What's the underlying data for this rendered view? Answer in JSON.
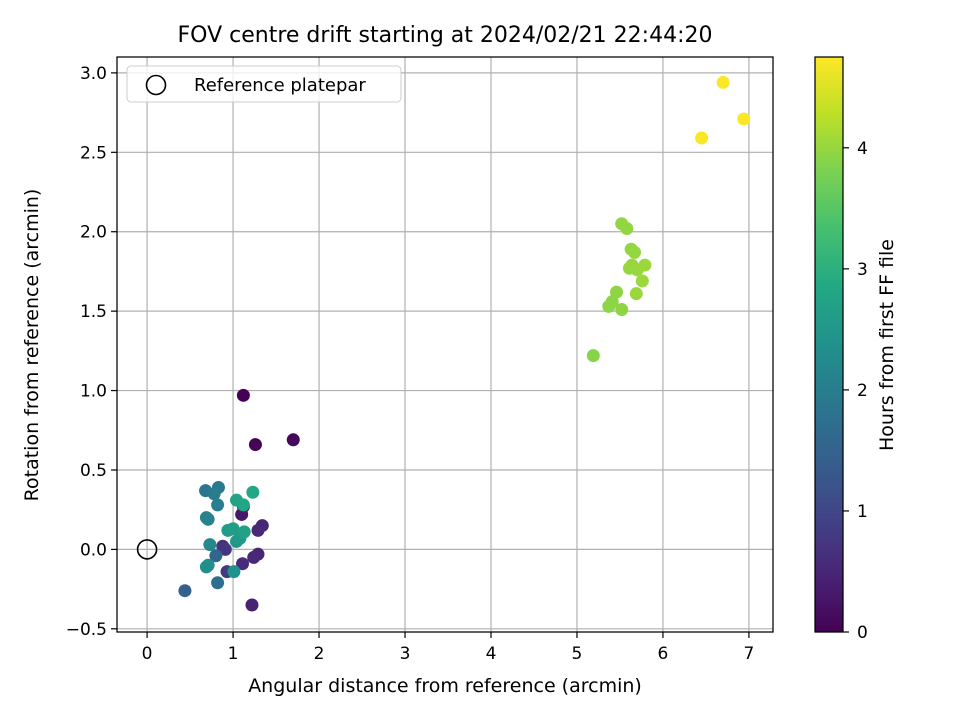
{
  "chart_data": {
    "type": "scatter",
    "title": "FOV centre drift starting at 2024/02/21 22:44:20",
    "xlabel": "Angular distance from reference (arcmin)",
    "ylabel": "Rotation from reference (arcmin)",
    "xlim": [
      -0.35,
      7.28
    ],
    "ylim": [
      -0.52,
      3.1
    ],
    "x_ticks": [
      0,
      1,
      2,
      3,
      4,
      5,
      6,
      7
    ],
    "x_tick_labels": [
      "0",
      "1",
      "2",
      "3",
      "4",
      "5",
      "6",
      "7"
    ],
    "y_ticks": [
      -0.5,
      0.0,
      0.5,
      1.0,
      1.5,
      2.0,
      2.5,
      3.0
    ],
    "y_tick_labels": [
      "−0.5",
      "0.0",
      "0.5",
      "1.0",
      "1.5",
      "2.0",
      "2.5",
      "3.0"
    ],
    "grid": true,
    "legend": {
      "placement": "upper-left",
      "entries": [
        {
          "label": "Reference platepar",
          "marker": "open-circle"
        }
      ]
    },
    "reference_point": {
      "x": 0.0,
      "y": 0.0
    },
    "colorbar": {
      "label": "Hours from first FF file",
      "colormap": "viridis",
      "range": [
        0,
        4.75
      ],
      "ticks": [
        0,
        1,
        2,
        3,
        4
      ],
      "tick_labels": [
        "0",
        "1",
        "2",
        "3",
        "4"
      ]
    },
    "points": [
      {
        "x": 1.12,
        "y": 0.97,
        "c": 0.02
      },
      {
        "x": 1.26,
        "y": 0.66,
        "c": 0.05
      },
      {
        "x": 1.7,
        "y": 0.69,
        "c": 0.1
      },
      {
        "x": 1.1,
        "y": 0.22,
        "c": 0.3
      },
      {
        "x": 1.12,
        "y": 0.27,
        "c": 0.35
      },
      {
        "x": 1.34,
        "y": 0.15,
        "c": 0.5
      },
      {
        "x": 1.29,
        "y": 0.12,
        "c": 0.55
      },
      {
        "x": 1.29,
        "y": -0.03,
        "c": 0.5
      },
      {
        "x": 1.24,
        "y": -0.05,
        "c": 0.55
      },
      {
        "x": 1.11,
        "y": -0.09,
        "c": 0.6
      },
      {
        "x": 1.22,
        "y": -0.35,
        "c": 0.45
      },
      {
        "x": 0.88,
        "y": 0.02,
        "c": 0.7
      },
      {
        "x": 0.91,
        "y": 0.0,
        "c": 0.75
      },
      {
        "x": 0.93,
        "y": -0.14,
        "c": 0.8
      },
      {
        "x": 0.44,
        "y": -0.26,
        "c": 1.45
      },
      {
        "x": 0.8,
        "y": -0.04,
        "c": 1.55
      },
      {
        "x": 0.82,
        "y": -0.21,
        "c": 1.75
      },
      {
        "x": 0.68,
        "y": 0.37,
        "c": 1.85
      },
      {
        "x": 0.83,
        "y": 0.39,
        "c": 1.9
      },
      {
        "x": 0.78,
        "y": 0.35,
        "c": 1.95
      },
      {
        "x": 0.82,
        "y": 0.28,
        "c": 2.0
      },
      {
        "x": 0.69,
        "y": 0.2,
        "c": 2.05
      },
      {
        "x": 0.71,
        "y": 0.19,
        "c": 2.1
      },
      {
        "x": 0.73,
        "y": 0.03,
        "c": 2.2
      },
      {
        "x": 0.71,
        "y": -0.1,
        "c": 2.3
      },
      {
        "x": 0.69,
        "y": -0.11,
        "c": 2.35
      },
      {
        "x": 1.01,
        "y": -0.14,
        "c": 2.4
      },
      {
        "x": 1.04,
        "y": 0.05,
        "c": 2.5
      },
      {
        "x": 1.08,
        "y": 0.07,
        "c": 2.55
      },
      {
        "x": 0.94,
        "y": 0.12,
        "c": 2.6
      },
      {
        "x": 1.0,
        "y": 0.13,
        "c": 2.65
      },
      {
        "x": 1.13,
        "y": 0.11,
        "c": 2.7
      },
      {
        "x": 1.04,
        "y": 0.31,
        "c": 2.75
      },
      {
        "x": 1.12,
        "y": 0.28,
        "c": 2.8
      },
      {
        "x": 1.23,
        "y": 0.36,
        "c": 2.85
      },
      {
        "x": 5.19,
        "y": 1.22,
        "c": 3.9
      },
      {
        "x": 5.37,
        "y": 1.53,
        "c": 3.92
      },
      {
        "x": 5.41,
        "y": 1.56,
        "c": 3.93
      },
      {
        "x": 5.46,
        "y": 1.62,
        "c": 3.94
      },
      {
        "x": 5.52,
        "y": 1.51,
        "c": 3.95
      },
      {
        "x": 5.52,
        "y": 2.05,
        "c": 3.96
      },
      {
        "x": 5.58,
        "y": 2.02,
        "c": 3.97
      },
      {
        "x": 5.63,
        "y": 1.89,
        "c": 3.98
      },
      {
        "x": 5.67,
        "y": 1.87,
        "c": 3.99
      },
      {
        "x": 5.61,
        "y": 1.77,
        "c": 4.0
      },
      {
        "x": 5.64,
        "y": 1.79,
        "c": 4.0
      },
      {
        "x": 5.7,
        "y": 1.76,
        "c": 4.01
      },
      {
        "x": 5.69,
        "y": 1.61,
        "c": 4.02
      },
      {
        "x": 5.76,
        "y": 1.69,
        "c": 4.03
      },
      {
        "x": 5.79,
        "y": 1.79,
        "c": 4.04
      },
      {
        "x": 6.45,
        "y": 2.59,
        "c": 4.72
      },
      {
        "x": 6.7,
        "y": 2.94,
        "c": 4.73
      },
      {
        "x": 6.94,
        "y": 2.71,
        "c": 4.74
      }
    ]
  }
}
